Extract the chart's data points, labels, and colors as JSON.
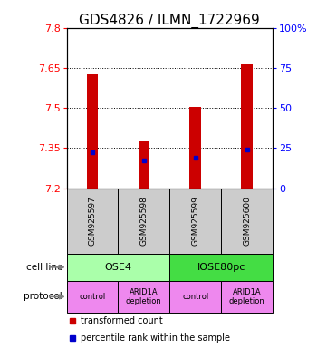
{
  "title": "GDS4826 / ILMN_1722969",
  "samples": [
    "GSM925597",
    "GSM925598",
    "GSM925599",
    "GSM925600"
  ],
  "bar_tops": [
    7.625,
    7.375,
    7.505,
    7.665
  ],
  "bar_bottoms": [
    7.2,
    7.2,
    7.2,
    7.2
  ],
  "percentile_values": [
    7.335,
    7.305,
    7.315,
    7.345
  ],
  "ylim": [
    7.2,
    7.8
  ],
  "yticks": [
    7.2,
    7.35,
    7.5,
    7.65,
    7.8
  ],
  "ytick_labels": [
    "7.2",
    "7.35",
    "7.5",
    "7.65",
    "7.8"
  ],
  "right_yticks": [
    0,
    25,
    50,
    75,
    100
  ],
  "right_ytick_labels": [
    "0",
    "25",
    "50",
    "75",
    "100%"
  ],
  "bar_color": "#cc0000",
  "percentile_color": "#0000cc",
  "cell_lines": [
    "OSE4",
    "IOSE80pc"
  ],
  "cell_line_spans": [
    [
      0,
      2
    ],
    [
      2,
      4
    ]
  ],
  "cell_line_colors": [
    "#aaffaa",
    "#44dd44"
  ],
  "protocols": [
    "control",
    "ARID1A\ndepletion",
    "control",
    "ARID1A\ndepletion"
  ],
  "protocol_color": "#ee88ee",
  "sample_box_color": "#cccccc",
  "title_fontsize": 11,
  "tick_fontsize": 8,
  "bar_width": 0.22,
  "x_positions": [
    0.5,
    1.5,
    2.5,
    3.5
  ]
}
